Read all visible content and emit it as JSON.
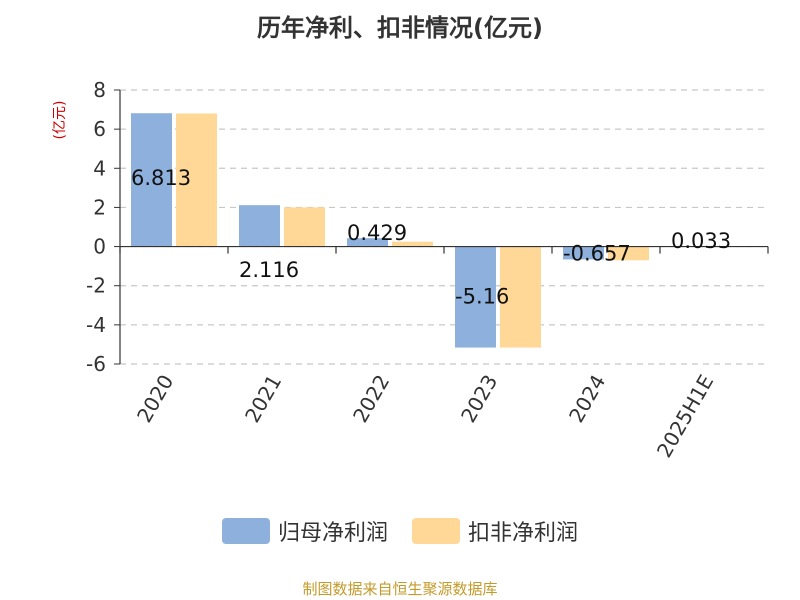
{
  "chart_data": {
    "type": "bar",
    "title": "历年净利、扣非情况(亿元)",
    "unit_label": "(亿元)",
    "categories": [
      "2020",
      "2021",
      "2022",
      "2023",
      "2024",
      "2025H1E"
    ],
    "series": [
      {
        "name": "归母净利润",
        "color": "#8eb0dd",
        "values": [
          6.813,
          2.116,
          0.429,
          -5.16,
          -0.657,
          0.033
        ]
      },
      {
        "name": "扣非净利润",
        "color": "#ffd796",
        "values": [
          6.8,
          2.0,
          0.25,
          -5.16,
          -0.7,
          0
        ]
      }
    ],
    "data_labels": [
      "6.813",
      "2.116",
      "0.429",
      "-5.16",
      "-0.657",
      "0.033"
    ],
    "ylim": [
      -6,
      8
    ],
    "yticks": [
      -6,
      -4,
      -2,
      0,
      2,
      4,
      6,
      8
    ],
    "grid": true,
    "legend_position": "bottom"
  },
  "footer": {
    "source": "制图数据来自恒生聚源数据库"
  }
}
